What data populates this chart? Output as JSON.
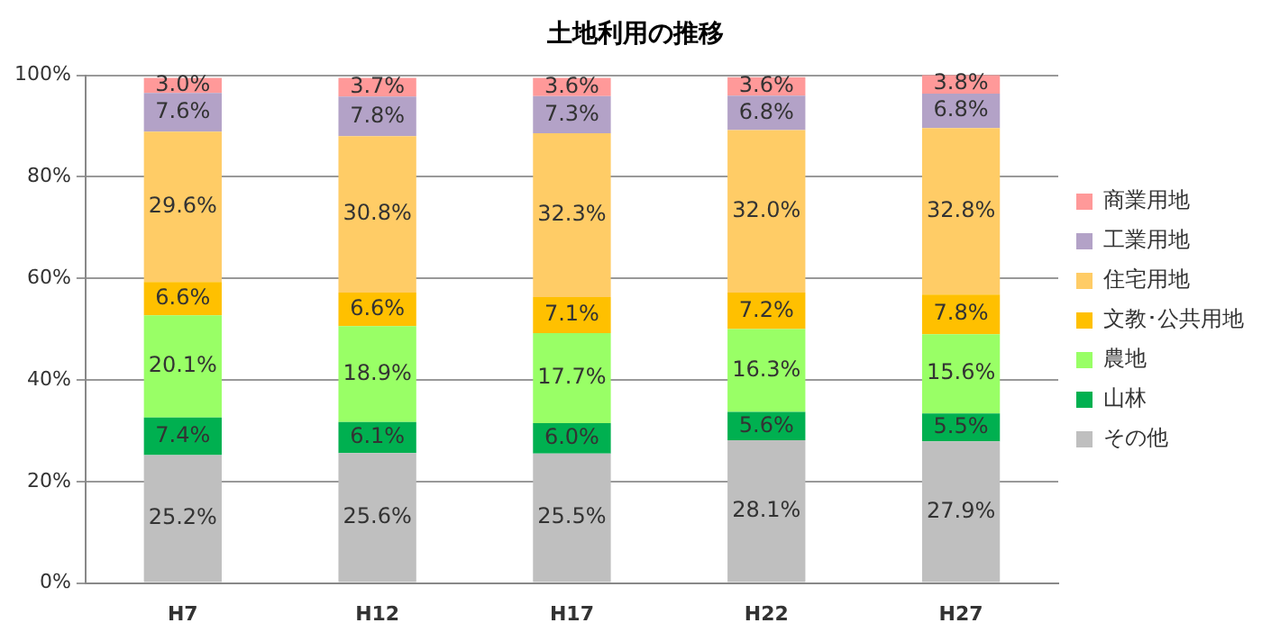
{
  "chart_data": {
    "type": "bar",
    "title": "土地利用の推移",
    "stacked": true,
    "categories": [
      "H7",
      "H12",
      "H17",
      "H22",
      "H27"
    ],
    "ylim": [
      0,
      100
    ],
    "yticks": [
      {
        "value": 0,
        "label": "0%"
      },
      {
        "value": 20,
        "label": "20%"
      },
      {
        "value": 40,
        "label": "40%"
      },
      {
        "value": 60,
        "label": "60%"
      },
      {
        "value": 80,
        "label": "80%"
      },
      {
        "value": 100,
        "label": "100%"
      }
    ],
    "grid": "y",
    "legend": "right",
    "series": [
      {
        "name": "その他",
        "color": "#bfbfbf",
        "values": [
          25.2,
          25.6,
          25.5,
          28.1,
          27.9
        ],
        "value_labels": [
          "25.2%",
          "25.6%",
          "25.5%",
          "28.1%",
          "27.9%"
        ]
      },
      {
        "name": "山林",
        "color": "#00b050",
        "values": [
          7.4,
          6.1,
          6.0,
          5.6,
          5.5
        ],
        "value_labels": [
          "7.4%",
          "6.1%",
          "6.0%",
          "5.6%",
          "5.5%"
        ]
      },
      {
        "name": "農地",
        "color": "#99ff66",
        "values": [
          20.1,
          18.9,
          17.7,
          16.3,
          15.6
        ],
        "value_labels": [
          "20.1%",
          "18.9%",
          "17.7%",
          "16.3%",
          "15.6%"
        ]
      },
      {
        "name": "文教･公共用地",
        "color": "#ffc000",
        "values": [
          6.6,
          6.6,
          7.1,
          7.2,
          7.8
        ],
        "value_labels": [
          "6.6%",
          "6.6%",
          "7.1%",
          "7.2%",
          "7.8%"
        ]
      },
      {
        "name": "住宅用地",
        "color": "#ffcc66",
        "values": [
          29.6,
          30.8,
          32.3,
          32.0,
          32.8
        ],
        "value_labels": [
          "29.6%",
          "30.8%",
          "32.3%",
          "32.0%",
          "32.8%"
        ]
      },
      {
        "name": "工業用地",
        "color": "#b3a2c7",
        "values": [
          7.6,
          7.8,
          7.3,
          6.8,
          6.8
        ],
        "value_labels": [
          "7.6%",
          "7.8%",
          "7.3%",
          "6.8%",
          "6.8%"
        ]
      },
      {
        "name": "商業用地",
        "color": "#ff9999",
        "values": [
          3.0,
          3.7,
          3.6,
          3.6,
          3.8
        ],
        "value_labels": [
          "3.0%",
          "3.7%",
          "3.6%",
          "3.6%",
          "3.8%"
        ]
      }
    ]
  }
}
